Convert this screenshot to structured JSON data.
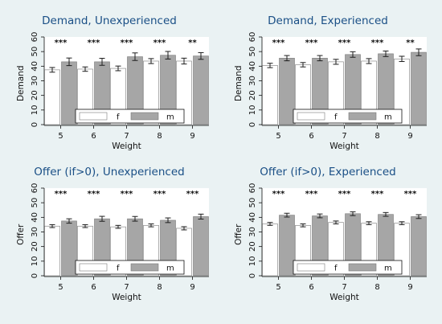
{
  "figure": {
    "background": "#eaf2f3"
  },
  "colors": {
    "female_bar": "#ffffff",
    "male_bar": "#a6a6a6",
    "bar_stroke": "#7a7a7a",
    "error_bar": "#1f1f1f",
    "plot_bg": "#ffffff",
    "title": "#1a4f86",
    "text": "#111111"
  },
  "chart_data": [
    {
      "type": "bar",
      "title": "Demand, Unexperienced",
      "xlabel": "Weight",
      "ylabel": "Demand",
      "ylim": [
        0,
        60
      ],
      "yticks": [
        "0",
        "10",
        "20",
        "30",
        "40",
        "50",
        "60"
      ],
      "categories": [
        "5",
        "6",
        "7",
        "8",
        "9"
      ],
      "series": [
        {
          "name": "f",
          "values": [
            37.5,
            38.0,
            38.5,
            43.5,
            43.5
          ],
          "ci": [
            1.6,
            1.5,
            1.6,
            1.7,
            2.0
          ]
        },
        {
          "name": "m",
          "values": [
            43.0,
            43.0,
            46.5,
            47.5,
            47.0
          ],
          "ci": [
            2.6,
            2.4,
            2.6,
            2.6,
            2.3
          ]
        }
      ],
      "significance": [
        "***",
        "***",
        "***",
        "***",
        "**"
      ],
      "legend": {
        "position": "bottom-inside",
        "entries": [
          "f",
          "m"
        ]
      },
      "grid": false
    },
    {
      "type": "bar",
      "title": "Demand, Experienced",
      "xlabel": "Weight",
      "ylabel": "Demand",
      "ylim": [
        0,
        60
      ],
      "yticks": [
        "0",
        "10",
        "20",
        "30",
        "40",
        "50",
        "60"
      ],
      "categories": [
        "5",
        "6",
        "7",
        "8",
        "9"
      ],
      "series": [
        {
          "name": "f",
          "values": [
            40.5,
            41.0,
            43.0,
            43.5,
            45.0
          ],
          "ci": [
            1.5,
            1.5,
            1.7,
            1.7,
            1.8
          ]
        },
        {
          "name": "m",
          "values": [
            45.5,
            45.5,
            48.0,
            48.5,
            49.5
          ],
          "ci": [
            1.8,
            1.8,
            1.9,
            1.9,
            2.3
          ]
        }
      ],
      "significance": [
        "***",
        "***",
        "***",
        "***",
        "**"
      ],
      "legend": {
        "position": "bottom-inside",
        "entries": [
          "f",
          "m"
        ]
      },
      "grid": false
    },
    {
      "type": "bar",
      "title": "Offer (if>0), Unexperienced",
      "xlabel": "Weight",
      "ylabel": "Offer",
      "ylim": [
        0,
        60
      ],
      "yticks": [
        "0",
        "10",
        "20",
        "30",
        "40",
        "50",
        "60"
      ],
      "categories": [
        "5",
        "6",
        "7",
        "8",
        "9"
      ],
      "series": [
        {
          "name": "f",
          "values": [
            34.0,
            34.0,
            33.5,
            34.5,
            32.5
          ],
          "ci": [
            1.0,
            1.0,
            1.0,
            1.0,
            1.1
          ]
        },
        {
          "name": "m",
          "values": [
            37.5,
            39.0,
            39.0,
            38.0,
            40.5
          ],
          "ci": [
            1.5,
            1.7,
            1.6,
            1.6,
            1.7
          ]
        }
      ],
      "significance": [
        "***",
        "***",
        "***",
        "***",
        "***"
      ],
      "legend": {
        "position": "bottom-inside",
        "entries": [
          "f",
          "m"
        ]
      },
      "grid": false
    },
    {
      "type": "bar",
      "title": "Offer (if>0), Experienced",
      "xlabel": "Weight",
      "ylabel": "Offer",
      "ylim": [
        0,
        60
      ],
      "yticks": [
        "0",
        "10",
        "20",
        "30",
        "40",
        "50",
        "60"
      ],
      "categories": [
        "5",
        "6",
        "7",
        "8",
        "9"
      ],
      "series": [
        {
          "name": "f",
          "values": [
            35.5,
            34.5,
            36.5,
            36.0,
            36.0
          ],
          "ci": [
            1.0,
            1.0,
            1.0,
            1.0,
            1.0
          ]
        },
        {
          "name": "m",
          "values": [
            41.5,
            41.0,
            42.5,
            42.0,
            40.5
          ],
          "ci": [
            1.3,
            1.3,
            1.3,
            1.3,
            1.3
          ]
        }
      ],
      "significance": [
        "***",
        "***",
        "***",
        "***",
        "***"
      ],
      "legend": {
        "position": "bottom-inside",
        "entries": [
          "f",
          "m"
        ]
      },
      "grid": false
    }
  ]
}
